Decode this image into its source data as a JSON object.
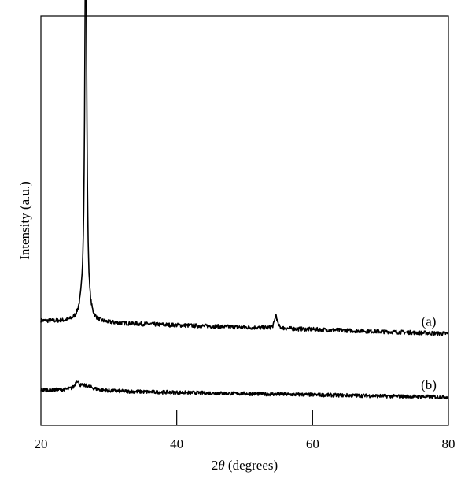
{
  "chart_data": {
    "type": "line",
    "title": "",
    "xlabel": "2θ (degrees)",
    "xlabel_parts": {
      "prefix": "2",
      "symbol": "θ",
      "suffix": " (degrees)"
    },
    "ylabel": "Intensity (a.u.)",
    "xlim": [
      20,
      80
    ],
    "ylim": [
      0,
      100
    ],
    "y_tick_labels": false,
    "grid": false,
    "x_ticks": [
      20,
      40,
      60,
      80
    ],
    "x_tick_labels": [
      "20",
      "40",
      "60",
      "80"
    ],
    "series": [
      {
        "name": "(a)",
        "color": "#000000",
        "baseline_start": 25.5,
        "baseline_end": 22.4,
        "noise": 0.5,
        "peaks": [
          {
            "x": 26.6,
            "height": 96.0,
            "width": 0.18
          },
          {
            "x": 26.1,
            "height": 2.5,
            "width": 0.6
          },
          {
            "x": 54.6,
            "height": 3.3,
            "width": 0.22
          }
        ]
      },
      {
        "name": "(b)",
        "color": "#000000",
        "baseline_start": 8.6,
        "baseline_end": 6.9,
        "noise": 0.45,
        "peaks": [
          {
            "x": 25.3,
            "height": 1.8,
            "width": 0.3
          },
          {
            "x": 26.5,
            "height": 1.2,
            "width": 1.5
          }
        ]
      }
    ]
  }
}
